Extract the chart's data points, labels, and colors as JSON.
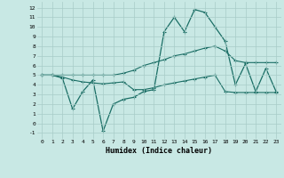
{
  "xlabel": "Humidex (Indice chaleur)",
  "background_color": "#c8e8e4",
  "grid_color": "#a8ccc8",
  "line_color": "#1a6e65",
  "x_ticks": [
    0,
    1,
    2,
    3,
    4,
    5,
    6,
    7,
    8,
    9,
    10,
    11,
    12,
    13,
    14,
    15,
    16,
    17,
    18,
    19,
    20,
    21,
    22,
    23
  ],
  "y_ticks": [
    -1,
    0,
    1,
    2,
    3,
    4,
    5,
    6,
    7,
    8,
    9,
    10,
    11,
    12
  ],
  "ylim": [
    -1.6,
    12.6
  ],
  "xlim": [
    -0.5,
    23.5
  ],
  "line1_x": [
    0,
    1,
    2,
    3,
    4,
    5,
    6,
    7,
    8,
    9,
    10,
    11,
    12,
    13,
    14,
    15,
    16,
    17,
    18,
    19,
    20,
    21,
    22,
    23
  ],
  "line1_y": [
    5.0,
    5.0,
    5.0,
    5.0,
    5.0,
    5.0,
    5.0,
    5.0,
    5.2,
    5.5,
    6.0,
    6.3,
    6.6,
    7.0,
    7.2,
    7.5,
    7.8,
    8.0,
    7.5,
    6.5,
    6.3,
    6.3,
    6.3,
    6.3
  ],
  "line2_x": [
    0,
    1,
    2,
    3,
    4,
    5,
    6,
    7,
    8,
    9,
    10,
    11,
    12,
    13,
    14,
    15,
    16,
    17,
    18,
    19,
    20,
    21,
    22,
    23
  ],
  "line2_y": [
    5.0,
    5.0,
    4.8,
    4.5,
    4.3,
    4.2,
    4.1,
    4.2,
    4.3,
    3.5,
    3.5,
    3.7,
    4.0,
    4.2,
    4.4,
    4.6,
    4.8,
    5.0,
    3.3,
    3.2,
    3.2,
    3.2,
    3.2,
    3.2
  ],
  "line3_x": [
    0,
    1,
    2,
    3,
    4,
    5,
    6,
    7,
    8,
    9,
    10,
    11,
    12,
    13,
    14,
    15,
    16,
    17,
    18,
    19,
    20,
    21,
    22,
    23
  ],
  "line3_y": [
    5.0,
    5.0,
    4.7,
    1.5,
    3.3,
    4.5,
    -0.8,
    2.0,
    2.5,
    2.7,
    3.3,
    3.5,
    9.5,
    11.0,
    9.5,
    11.8,
    11.5,
    10.0,
    8.5,
    4.0,
    6.2,
    3.3,
    5.7,
    3.3
  ]
}
